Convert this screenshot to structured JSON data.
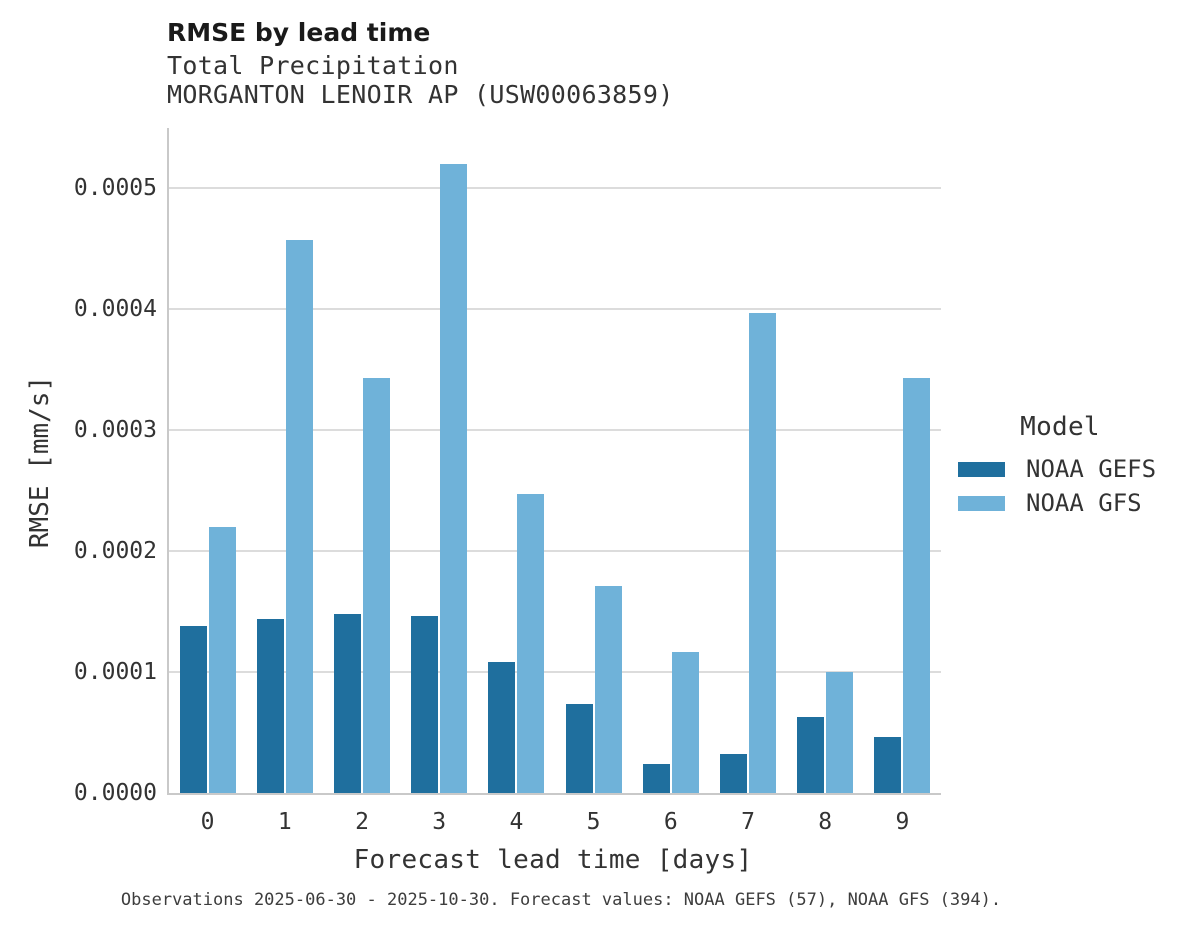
{
  "header": {
    "title": "RMSE by lead time",
    "subtitle_variable": "Total Precipitation",
    "subtitle_station": "MORGANTON LENOIR AP (USW00063859)"
  },
  "legend": {
    "title": "Model",
    "entries": [
      {
        "label": "NOAA GEFS",
        "color": "#1f6f9e"
      },
      {
        "label": "NOAA GFS",
        "color": "#6fb2d9"
      }
    ]
  },
  "footer": {
    "caption": "Observations 2025-06-30 - 2025-10-30. Forecast values: NOAA GEFS (57), NOAA GFS (394)."
  },
  "chart_data": {
    "type": "bar",
    "title": "RMSE by lead time",
    "subtitle": [
      "Total Precipitation",
      "MORGANTON LENOIR AP (USW00063859)"
    ],
    "categories": [
      "0",
      "1",
      "2",
      "3",
      "4",
      "5",
      "6",
      "7",
      "8",
      "9"
    ],
    "series": [
      {
        "name": "NOAA GEFS",
        "color": "#1f6f9e",
        "values": [
          0.0001384,
          0.0001438,
          0.0001477,
          0.000146,
          0.000108,
          7.33e-05,
          2.37e-05,
          3.26e-05,
          6.25e-05,
          4.63e-05
        ]
      },
      {
        "name": "NOAA GFS",
        "color": "#6fb2d9",
        "values": [
          0.0002202,
          0.0004576,
          0.0003433,
          0.0005202,
          0.0002469,
          0.0001714,
          0.0001163,
          0.0003973,
          0.0001,
          0.0003436
        ]
      }
    ],
    "xlabel": "Forecast lead time [days]",
    "ylabel": "RMSE [mm/s]",
    "ylim": [
      0,
      0.00055
    ],
    "yticks": [
      0.0,
      0.0001,
      0.0002,
      0.0003,
      0.0004,
      0.0005
    ],
    "ytick_labels": [
      "0.0000",
      "0.0001",
      "0.0002",
      "0.0003",
      "0.0004",
      "0.0005"
    ],
    "grid": true,
    "legend_title": "Model",
    "legend_position": "right"
  }
}
